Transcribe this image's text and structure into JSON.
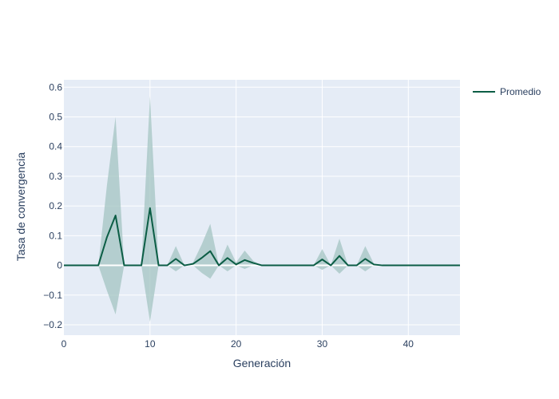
{
  "chart_data": {
    "type": "line",
    "xlabel": "Generación",
    "ylabel": "Tasa de convergencia",
    "xlim": [
      0,
      46
    ],
    "ylim": [
      -0.235,
      0.625
    ],
    "x_ticks": [
      0,
      10,
      20,
      30,
      40
    ],
    "y_ticks": [
      -0.2,
      -0.1,
      0,
      0.1,
      0.2,
      0.3,
      0.4,
      0.5,
      0.6
    ],
    "y_tick_labels": [
      "−0.2",
      "−0.1",
      "0",
      "0.1",
      "0.2",
      "0.3",
      "0.4",
      "0.5",
      "0.6"
    ],
    "grid": true,
    "legend_position": "top-right",
    "colors": {
      "plot_bg": "#e5ecf6",
      "grid": "#ffffff",
      "line": "#0b5d45",
      "band": "#a3c4c2"
    },
    "series": [
      {
        "name": "Promedio",
        "x": [
          0,
          1,
          2,
          3,
          4,
          5,
          6,
          7,
          8,
          9,
          10,
          11,
          12,
          13,
          14,
          15,
          16,
          17,
          18,
          19,
          20,
          21,
          22,
          23,
          24,
          25,
          26,
          27,
          28,
          29,
          30,
          31,
          32,
          33,
          34,
          35,
          36,
          37,
          38,
          39,
          40,
          41,
          42,
          43,
          44,
          45,
          46
        ],
        "values": [
          0,
          0,
          0,
          0,
          0,
          0.095,
          0.168,
          0,
          0,
          0,
          0.193,
          0,
          0,
          0.022,
          0,
          0.005,
          0.025,
          0.048,
          0,
          0.025,
          0.003,
          0.018,
          0.008,
          0,
          0,
          0,
          0,
          0,
          0,
          0,
          0.02,
          0,
          0.032,
          0,
          0,
          0.022,
          0.003,
          0,
          0,
          0,
          0,
          0,
          0,
          0,
          0,
          0,
          0
        ],
        "upper": [
          0,
          0,
          0,
          0,
          0,
          0.27,
          0.5,
          0,
          0,
          0,
          0.57,
          0,
          0,
          0.065,
          0,
          0.01,
          0.07,
          0.14,
          0,
          0.07,
          0.01,
          0.05,
          0.015,
          0,
          0,
          0,
          0,
          0,
          0,
          0,
          0.055,
          0,
          0.09,
          0,
          0,
          0.065,
          0.006,
          0,
          0,
          0,
          0,
          0,
          0,
          0,
          0,
          0,
          0
        ],
        "lower": [
          0,
          0,
          0,
          0,
          0,
          -0.085,
          -0.165,
          0,
          0,
          0,
          -0.19,
          0,
          0,
          -0.02,
          0,
          0,
          -0.025,
          -0.045,
          0,
          -0.02,
          0,
          -0.012,
          0,
          0,
          0,
          0,
          0,
          0,
          0,
          0,
          -0.015,
          0,
          -0.028,
          0,
          0,
          -0.02,
          0,
          0,
          0,
          0,
          0,
          0,
          0,
          0,
          0,
          0,
          0
        ]
      }
    ]
  }
}
